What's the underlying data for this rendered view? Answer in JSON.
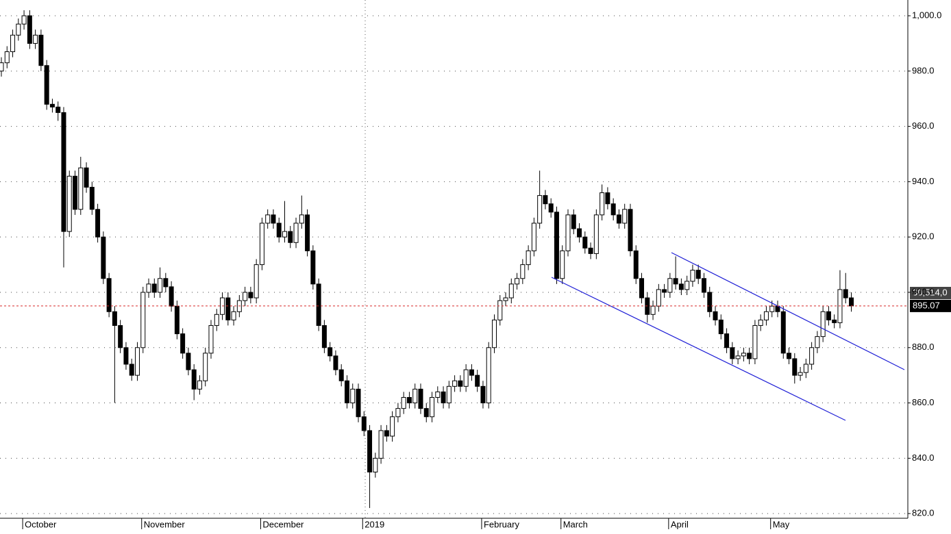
{
  "chart_data": {
    "type": "candlestick",
    "ylim": [
      818.3,
      1005.7
    ],
    "yticks": [
      {
        "value": 820,
        "label": "820.0"
      },
      {
        "value": 840,
        "label": "840.0"
      },
      {
        "value": 860,
        "label": "860.0"
      },
      {
        "value": 880,
        "label": "880.0"
      },
      {
        "value": 900,
        "label": "900.0"
      },
      {
        "value": 920,
        "label": "920.0"
      },
      {
        "value": 940,
        "label": "940.0"
      },
      {
        "value": 960,
        "label": "960.0"
      },
      {
        "value": 980,
        "label": "980.0"
      },
      {
        "value": 1000,
        "label": "1,000.0"
      }
    ],
    "grid": true,
    "up_color": "#ffffff",
    "down_color": "#000000",
    "last_price": 895.07,
    "last_price_color": "#d62728",
    "volume_label": "30,514,0",
    "categories": [
      null,
      null,
      null,
      null,
      "October",
      null,
      null,
      null,
      null,
      null,
      null,
      null,
      null,
      null,
      null,
      null,
      null,
      null,
      null,
      null,
      null,
      null,
      null,
      null,
      null,
      "November",
      null,
      null,
      null,
      null,
      null,
      null,
      null,
      null,
      null,
      null,
      null,
      null,
      null,
      null,
      null,
      null,
      null,
      null,
      null,
      null,
      "December",
      null,
      null,
      null,
      null,
      null,
      null,
      null,
      null,
      null,
      null,
      null,
      null,
      null,
      null,
      null,
      null,
      null,
      "2019",
      null,
      null,
      null,
      null,
      null,
      null,
      null,
      null,
      null,
      null,
      null,
      null,
      null,
      null,
      null,
      null,
      null,
      null,
      null,
      null,
      "February",
      null,
      null,
      null,
      null,
      null,
      null,
      null,
      null,
      null,
      null,
      null,
      null,
      null,
      "March",
      null,
      null,
      null,
      null,
      null,
      null,
      null,
      null,
      null,
      null,
      null,
      null,
      null,
      null,
      null,
      null,
      null,
      null,
      "April",
      null,
      null,
      null,
      null,
      null,
      null,
      null,
      null,
      null,
      null,
      null,
      null,
      null,
      null,
      null,
      null,
      null,
      "May",
      null,
      null,
      null,
      null,
      null,
      null,
      null,
      null,
      null,
      null,
      null,
      null,
      null,
      null
    ],
    "ohlc": [
      [
        980,
        985,
        978,
        983
      ],
      [
        983,
        989,
        981,
        987
      ],
      [
        987,
        995,
        985,
        993
      ],
      [
        993,
        999,
        991,
        997
      ],
      [
        997,
        1002,
        995,
        1000
      ],
      [
        1000,
        1002,
        988,
        990
      ],
      [
        990,
        995,
        988,
        993
      ],
      [
        993,
        995,
        980,
        982
      ],
      [
        982,
        984,
        966,
        968
      ],
      [
        968,
        970,
        965,
        967
      ],
      [
        967,
        969,
        962,
        965
      ],
      [
        965,
        967,
        909,
        922
      ],
      [
        922,
        944,
        920,
        942
      ],
      [
        942,
        944,
        928,
        930
      ],
      [
        930,
        949,
        928,
        945
      ],
      [
        945,
        947,
        936,
        938
      ],
      [
        938,
        940,
        928,
        930
      ],
      [
        930,
        932,
        918,
        920
      ],
      [
        920,
        922,
        903,
        905
      ],
      [
        905,
        907,
        891,
        893
      ],
      [
        893,
        895,
        860,
        888
      ],
      [
        888,
        890,
        878,
        880
      ],
      [
        880,
        882,
        872,
        874
      ],
      [
        874,
        876,
        868,
        870
      ],
      [
        870,
        882,
        868,
        880
      ],
      [
        880,
        902,
        878,
        900
      ],
      [
        900,
        905,
        898,
        903
      ],
      [
        903,
        905,
        898,
        900
      ],
      [
        900,
        909,
        898,
        905
      ],
      [
        905,
        907,
        900,
        902
      ],
      [
        902,
        904,
        893,
        895
      ],
      [
        895,
        897,
        883,
        885
      ],
      [
        885,
        887,
        876,
        878
      ],
      [
        878,
        880,
        870,
        872
      ],
      [
        872,
        874,
        861,
        865
      ],
      [
        865,
        870,
        863,
        868
      ],
      [
        868,
        880,
        866,
        878
      ],
      [
        878,
        890,
        876,
        888
      ],
      [
        888,
        894,
        886,
        892
      ],
      [
        892,
        900,
        890,
        898
      ],
      [
        898,
        900,
        888,
        890
      ],
      [
        890,
        895,
        888,
        893
      ],
      [
        893,
        899,
        891,
        897
      ],
      [
        897,
        902,
        895,
        900
      ],
      [
        900,
        902,
        896,
        898
      ],
      [
        898,
        912,
        896,
        910
      ],
      [
        910,
        927,
        908,
        925
      ],
      [
        925,
        930,
        923,
        928
      ],
      [
        928,
        930,
        923,
        925
      ],
      [
        925,
        927,
        918,
        920
      ],
      [
        920,
        933,
        918,
        922
      ],
      [
        922,
        924,
        916,
        918
      ],
      [
        918,
        927,
        916,
        925
      ],
      [
        925,
        935,
        923,
        928
      ],
      [
        928,
        930,
        913,
        915
      ],
      [
        915,
        917,
        901,
        903
      ],
      [
        903,
        905,
        886,
        888
      ],
      [
        888,
        890,
        878,
        880
      ],
      [
        880,
        882,
        875,
        877
      ],
      [
        877,
        879,
        870,
        872
      ],
      [
        872,
        874,
        866,
        868
      ],
      [
        868,
        870,
        858,
        860
      ],
      [
        860,
        867,
        858,
        865
      ],
      [
        865,
        867,
        853,
        855
      ],
      [
        855,
        857,
        848,
        850
      ],
      [
        850,
        852,
        822,
        835
      ],
      [
        835,
        842,
        833,
        840
      ],
      [
        840,
        852,
        838,
        850
      ],
      [
        850,
        852,
        846,
        848
      ],
      [
        848,
        857,
        846,
        855
      ],
      [
        855,
        860,
        853,
        858
      ],
      [
        858,
        864,
        856,
        862
      ],
      [
        862,
        864,
        858,
        860
      ],
      [
        860,
        867,
        858,
        865
      ],
      [
        865,
        867,
        856,
        858
      ],
      [
        858,
        860,
        853,
        855
      ],
      [
        855,
        864,
        853,
        862
      ],
      [
        862,
        866,
        860,
        864
      ],
      [
        864,
        866,
        858,
        860
      ],
      [
        860,
        868,
        858,
        866
      ],
      [
        866,
        870,
        864,
        868
      ],
      [
        868,
        870,
        864,
        866
      ],
      [
        866,
        874,
        864,
        872
      ],
      [
        872,
        874,
        868,
        870
      ],
      [
        870,
        872,
        864,
        866
      ],
      [
        866,
        868,
        858,
        860
      ],
      [
        860,
        882,
        858,
        880
      ],
      [
        880,
        892,
        878,
        890
      ],
      [
        890,
        899,
        888,
        897
      ],
      [
        897,
        900,
        895,
        898
      ],
      [
        898,
        905,
        896,
        903
      ],
      [
        903,
        907,
        901,
        905
      ],
      [
        905,
        912,
        903,
        910
      ],
      [
        910,
        917,
        908,
        915
      ],
      [
        915,
        927,
        913,
        925
      ],
      [
        925,
        944,
        923,
        935
      ],
      [
        935,
        937,
        930,
        932
      ],
      [
        932,
        934,
        927,
        929
      ],
      [
        929,
        931,
        903,
        905
      ],
      [
        905,
        917,
        903,
        915
      ],
      [
        915,
        930,
        913,
        928
      ],
      [
        928,
        930,
        921,
        923
      ],
      [
        923,
        925,
        918,
        920
      ],
      [
        920,
        922,
        914,
        916
      ],
      [
        916,
        918,
        912,
        914
      ],
      [
        914,
        930,
        912,
        928
      ],
      [
        928,
        939,
        926,
        936
      ],
      [
        936,
        938,
        930,
        932
      ],
      [
        932,
        934,
        926,
        928
      ],
      [
        928,
        930,
        923,
        925
      ],
      [
        925,
        932,
        923,
        930
      ],
      [
        930,
        932,
        913,
        915
      ],
      [
        915,
        917,
        903,
        905
      ],
      [
        905,
        907,
        896,
        898
      ],
      [
        898,
        900,
        889,
        892
      ],
      [
        892,
        897,
        890,
        895
      ],
      [
        895,
        903,
        893,
        901
      ],
      [
        901,
        903,
        898,
        900
      ],
      [
        900,
        907,
        898,
        905
      ],
      [
        905,
        913,
        901,
        903
      ],
      [
        903,
        905,
        899,
        901
      ],
      [
        901,
        906,
        899,
        904
      ],
      [
        904,
        910,
        902,
        908
      ],
      [
        908,
        910,
        903,
        905
      ],
      [
        905,
        907,
        898,
        900
      ],
      [
        900,
        902,
        891,
        893
      ],
      [
        893,
        895,
        888,
        890
      ],
      [
        890,
        892,
        883,
        885
      ],
      [
        885,
        887,
        878,
        880
      ],
      [
        880,
        882,
        874,
        876
      ],
      [
        876,
        879,
        874,
        877
      ],
      [
        877,
        880,
        875,
        878
      ],
      [
        878,
        880,
        874,
        876
      ],
      [
        876,
        890,
        874,
        888
      ],
      [
        888,
        892,
        886,
        890
      ],
      [
        890,
        895,
        888,
        893
      ],
      [
        893,
        897,
        891,
        895
      ],
      [
        895,
        897,
        891,
        893
      ],
      [
        893,
        895,
        876,
        878
      ],
      [
        878,
        880,
        874,
        876
      ],
      [
        876,
        878,
        867,
        870
      ],
      [
        870,
        873,
        868,
        871
      ],
      [
        871,
        876,
        869,
        874
      ],
      [
        874,
        882,
        872,
        880
      ],
      [
        880,
        886,
        878,
        884
      ],
      [
        884,
        895,
        882,
        893
      ],
      [
        893,
        895,
        888,
        890
      ],
      [
        890,
        892,
        887,
        889
      ],
      [
        889,
        908,
        887,
        901
      ],
      [
        901,
        907,
        896,
        898
      ],
      [
        898,
        900,
        893,
        895.07
      ]
    ]
  }
}
